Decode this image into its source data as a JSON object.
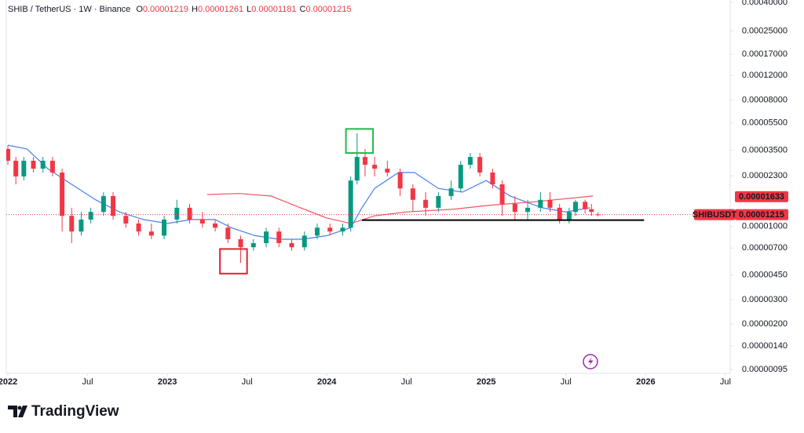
{
  "chart_data": {
    "type": "candlestick",
    "log_scale": true,
    "grid": false,
    "ohlc_legend": {
      "symbol": "SHIB / TetherUS · 1W · Binance",
      "fields": [
        {
          "key": "O",
          "value": 1.219e-05,
          "label": "0.00001219"
        },
        {
          "key": "H",
          "value": 1.261e-05,
          "label": "0.00001261"
        },
        {
          "key": "L",
          "value": 1.181e-05,
          "label": "0.00001181"
        },
        {
          "key": "C",
          "value": 1.215e-05,
          "label": "0.00001215"
        }
      ]
    },
    "xlim": [
      2021.99,
      2026.53
    ],
    "xticks": [
      {
        "value": 2022,
        "label": "2022"
      },
      {
        "value": 2022.5,
        "label": "Jul"
      },
      {
        "value": 2023,
        "label": "2023"
      },
      {
        "value": 2023.5,
        "label": "Jul"
      },
      {
        "value": 2024,
        "label": "2024"
      },
      {
        "value": 2024.5,
        "label": "Jul"
      },
      {
        "value": 2025,
        "label": "2025"
      },
      {
        "value": 2025.5,
        "label": "Jul"
      },
      {
        "value": 2026,
        "label": "2026"
      },
      {
        "value": 2026.5,
        "label": "Jul"
      }
    ],
    "ylim": [
      8.9e-07,
      0.000416
    ],
    "yticks": [
      {
        "value": 0.0004,
        "label": "0.00040000"
      },
      {
        "value": 0.00025,
        "label": "0.00025000"
      },
      {
        "value": 0.00017,
        "label": "0.00017000"
      },
      {
        "value": 0.00012,
        "label": "0.00012000"
      },
      {
        "value": 8e-05,
        "label": "0.00008000"
      },
      {
        "value": 5.5e-05,
        "label": "0.00005500"
      },
      {
        "value": 3.5e-05,
        "label": "0.00003500"
      },
      {
        "value": 2.3e-05,
        "label": "0.00002300"
      },
      {
        "value": 1e-05,
        "label": "0.00001000"
      },
      {
        "value": 7e-06,
        "label": "0.00000700"
      },
      {
        "value": 4.5e-06,
        "label": "0.00000450"
      },
      {
        "value": 3e-06,
        "label": "0.00000300"
      },
      {
        "value": 2e-06,
        "label": "0.00000200"
      },
      {
        "value": 1.4e-06,
        "label": "0.00000140"
      },
      {
        "value": 9.5e-07,
        "label": "0.00000095"
      }
    ],
    "up_color": "#089981",
    "down_color": "#f23645",
    "x": [
      2022.0,
      2022.05,
      2022.1,
      2022.16,
      2022.22,
      2022.28,
      2022.34,
      2022.4,
      2022.46,
      2022.52,
      2022.6,
      2022.66,
      2022.74,
      2022.82,
      2022.9,
      2022.98,
      2023.06,
      2023.14,
      2023.22,
      2023.3,
      2023.38,
      2023.46,
      2023.54,
      2023.62,
      2023.7,
      2023.78,
      2023.86,
      2023.94,
      2024.02,
      2024.1,
      2024.15,
      2024.19,
      2024.24,
      2024.3,
      2024.38,
      2024.46,
      2024.54,
      2024.62,
      2024.7,
      2024.78,
      2024.84,
      2024.9,
      2024.96,
      2025.04,
      2025.1,
      2025.18,
      2025.26,
      2025.34,
      2025.4,
      2025.46,
      2025.52,
      2025.56,
      2025.62,
      2025.66,
      2025.7
    ],
    "open": [
      3.58e-05,
      2.95e-05,
      2.28e-05,
      2.95e-05,
      2.59e-05,
      2.95e-05,
      2.43e-05,
      1.19e-05,
      9.2e-06,
      1.12e-05,
      1.27e-05,
      1.65e-05,
      1.19e-05,
      1.05e-05,
      9.2e-06,
      8.6e-06,
      1.12e-05,
      1.36e-05,
      1.12e-05,
      1.05e-05,
      9.8e-06,
      8.1e-06,
      7.1e-06,
      7.6e-06,
      9.2e-06,
      7.6e-06,
      7.1e-06,
      8.6e-06,
      9.8e-06,
      9.2e-06,
      9.8e-06,
      2.13e-05,
      3.14e-05,
      2.76e-05,
      2.59e-05,
      2.43e-05,
      1.87e-05,
      1.55e-05,
      1.36e-05,
      1.65e-05,
      1.87e-05,
      2.76e-05,
      3.14e-05,
      2.43e-05,
      2e-05,
      1.45e-05,
      1.27e-05,
      1.36e-05,
      1.55e-05,
      1.36e-05,
      1.12e-05,
      1.27e-05,
      1.5e-05,
      1.33e-05,
      1.219e-05
    ],
    "high": [
      3.81e-05,
      3.14e-05,
      3.14e-05,
      3.14e-05,
      3.14e-05,
      3.14e-05,
      2.59e-05,
      1.36e-05,
      1.27e-05,
      1.36e-05,
      1.76e-05,
      1.76e-05,
      1.27e-05,
      1.12e-05,
      1.05e-05,
      1.19e-05,
      1.55e-05,
      1.45e-05,
      1.27e-05,
      1.12e-05,
      1.05e-05,
      8.6e-06,
      8.1e-06,
      9.8e-06,
      9.8e-06,
      8.1e-06,
      9.2e-06,
      1.05e-05,
      1.05e-05,
      1.05e-05,
      2.28e-05,
      4.63e-05,
      3.58e-05,
      3.14e-05,
      2.95e-05,
      2.59e-05,
      2e-05,
      1.76e-05,
      1.76e-05,
      2.13e-05,
      2.95e-05,
      3.35e-05,
      3.35e-05,
      2.59e-05,
      2.13e-05,
      1.65e-05,
      1.55e-05,
      1.76e-05,
      1.76e-05,
      1.45e-05,
      1.36e-05,
      1.55e-05,
      1.55e-05,
      1.45e-05,
      1.261e-05
    ],
    "low": [
      2.76e-05,
      2e-05,
      2.13e-05,
      2.43e-05,
      2.43e-05,
      2.28e-05,
      9.2e-06,
      7.6e-06,
      8.6e-06,
      1.05e-05,
      1.19e-05,
      1.12e-05,
      9.8e-06,
      8.6e-06,
      8.1e-06,
      8.1e-06,
      1.05e-05,
      1.05e-05,
      9.8e-06,
      9.2e-06,
      7.6e-06,
      5.5e-06,
      6.7e-06,
      7.1e-06,
      7.1e-06,
      6.7e-06,
      6.7e-06,
      8.1e-06,
      8.6e-06,
      8.6e-06,
      9.2e-06,
      2e-05,
      2.28e-05,
      2.28e-05,
      2.28e-05,
      1.65e-05,
      1.27e-05,
      1.19e-05,
      1.27e-05,
      1.55e-05,
      1.76e-05,
      2.59e-05,
      2.28e-05,
      1.87e-05,
      1.19e-05,
      1.12e-05,
      1.12e-05,
      1.27e-05,
      1.27e-05,
      1.05e-05,
      1.05e-05,
      1.19e-05,
      1.24e-05,
      1.19e-05,
      1.181e-05
    ],
    "close": [
      2.95e-05,
      2.28e-05,
      2.95e-05,
      2.59e-05,
      2.95e-05,
      2.43e-05,
      1.19e-05,
      9.2e-06,
      1.12e-05,
      1.27e-05,
      1.65e-05,
      1.19e-05,
      1.05e-05,
      9.2e-06,
      8.6e-06,
      1.12e-05,
      1.36e-05,
      1.12e-05,
      1.05e-05,
      9.8e-06,
      8.1e-06,
      7.1e-06,
      7.6e-06,
      9.2e-06,
      7.6e-06,
      7.1e-06,
      8.6e-06,
      9.8e-06,
      9.2e-06,
      9.8e-06,
      2.13e-05,
      3.14e-05,
      2.76e-05,
      2.59e-05,
      2.43e-05,
      1.87e-05,
      1.55e-05,
      1.36e-05,
      1.65e-05,
      1.87e-05,
      2.76e-05,
      3.14e-05,
      2.43e-05,
      2e-05,
      1.45e-05,
      1.27e-05,
      1.36e-05,
      1.55e-05,
      1.36e-05,
      1.12e-05,
      1.27e-05,
      1.5e-05,
      1.33e-05,
      1.27e-05,
      1.215e-05
    ],
    "moving_averages": [
      {
        "color": "#4a7ef0",
        "x": [
          2022.0,
          2022.12,
          2022.25,
          2022.4,
          2022.55,
          2022.7,
          2022.85,
          2023.0,
          2023.15,
          2023.3,
          2023.4,
          2023.55,
          2023.7,
          2023.85,
          2024.0,
          2024.15,
          2024.22,
          2024.3,
          2024.45,
          2024.55,
          2024.7,
          2024.85,
          2025.0,
          2025.15,
          2025.35,
          2025.5,
          2025.65
        ],
        "values": [
          3.81e-05,
          3.58e-05,
          2.59e-05,
          2e-05,
          1.55e-05,
          1.27e-05,
          1.12e-05,
          1.05e-05,
          1.12e-05,
          1.12e-05,
          9.8e-06,
          8.6e-06,
          8.1e-06,
          8.1e-06,
          8.6e-06,
          9.8e-06,
          1.36e-05,
          1.87e-05,
          2.43e-05,
          2.43e-05,
          1.87e-05,
          1.76e-05,
          2.13e-05,
          1.65e-05,
          1.36e-05,
          1.27e-05,
          1.36e-05
        ]
      },
      {
        "color": "#f0555f",
        "x": [
          2023.25,
          2023.45,
          2023.65,
          2023.8,
          2024.0,
          2024.15,
          2024.3,
          2024.5,
          2024.8,
          2025.0,
          2025.3,
          2025.67
        ],
        "values": [
          1.69e-05,
          1.72e-05,
          1.65e-05,
          1.41e-05,
          1.15e-05,
          1.05e-05,
          1.19e-05,
          1.27e-05,
          1.33e-05,
          1.41e-05,
          1.5e-05,
          1.65e-05
        ]
      }
    ],
    "support_line": {
      "x": [
        2024.22,
        2025.99
      ],
      "value": 1.11e-05,
      "color": "#000000"
    },
    "highlight_boxes": [
      {
        "x": [
          2024.12,
          2024.29
        ],
        "y": [
          3.35e-05,
          4.98e-05
        ],
        "color": "#22b84a"
      },
      {
        "x": [
          2023.33,
          2023.5
        ],
        "y": [
          4.6e-06,
          6.9e-06
        ],
        "color": "#e0242f"
      }
    ],
    "ma_tag": {
      "value": 1.633e-05,
      "label": "0.00001633",
      "color": "#f23645"
    },
    "last_price": {
      "value": 1.215e-05,
      "label": "0.00001215",
      "symbol": "SHIBUSDT",
      "color": "#f23645"
    }
  },
  "branding": "TradingView"
}
